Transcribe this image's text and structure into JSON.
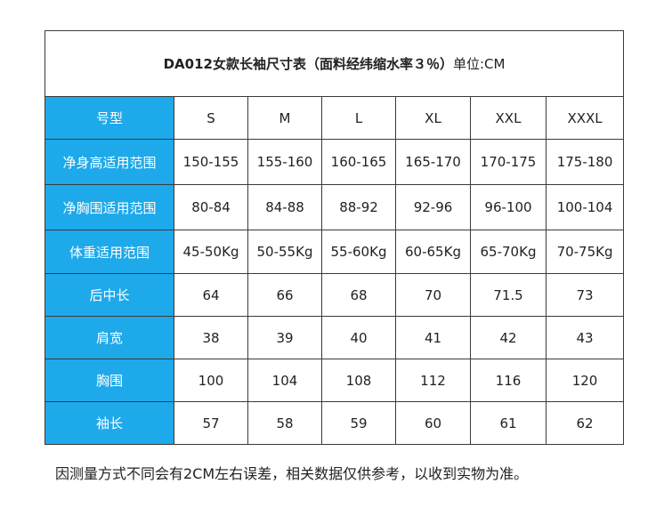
{
  "title": {
    "main": "DA012女款长袖尺寸表（面料经纬缩水率３％）",
    "unit": "单位:CM"
  },
  "table": {
    "rows": [
      {
        "label": "号型",
        "cells": [
          "S",
          "M",
          "L",
          "XL",
          "XXL",
          "XXXL"
        ]
      },
      {
        "label": "净身高适用范围",
        "cells": [
          "150-155",
          "155-160",
          "160-165",
          "165-170",
          "170-175",
          "175-180"
        ]
      },
      {
        "label": "净胸围适用范围",
        "cells": [
          "80-84",
          "84-88",
          "88-92",
          "92-96",
          "96-100",
          "100-104"
        ]
      },
      {
        "label": "体重适用范围",
        "cells": [
          "45-50Kg",
          "50-55Kg",
          "55-60Kg",
          "60-65Kg",
          "65-70Kg",
          "70-75Kg"
        ]
      },
      {
        "label": "后中长",
        "cells": [
          "64",
          "66",
          "68",
          "70",
          "71.5",
          "73"
        ]
      },
      {
        "label": "肩宽",
        "cells": [
          "38",
          "39",
          "40",
          "41",
          "42",
          "43"
        ]
      },
      {
        "label": "胸围",
        "cells": [
          "100",
          "104",
          "108",
          "112",
          "116",
          "120"
        ]
      },
      {
        "label": "袖长",
        "cells": [
          "57",
          "58",
          "59",
          "60",
          "61",
          "62"
        ]
      }
    ]
  },
  "note": "因测量方式不同会有2CM左右误差，相关数据仅供参考，以收到实物为准。",
  "colors": {
    "header_bg": "#1ea9ea",
    "header_text": "#ffffff",
    "border": "#3a3a3a"
  }
}
